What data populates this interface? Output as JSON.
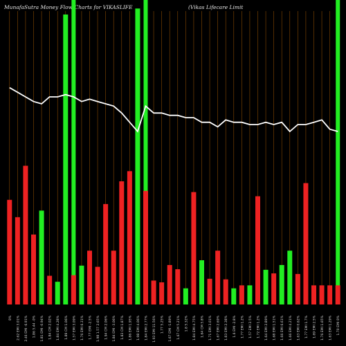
{
  "header": {
    "title_left": "MunafaSutra  Money Flow  Charts for VIKASLIFE",
    "title_right": "(Vikas Lifecare   Limit"
  },
  "chart_data": {
    "type": "bar",
    "title": "MunafaSutra Money Flow Charts for VIKASLIFE (Vikas Lifecare Limit",
    "colors": {
      "up": "#22ee22",
      "down": "#ee2222",
      "line": "#ffffff",
      "grid": "#8a4a00",
      "background": "#000000"
    },
    "categories": [
      "0%",
      "2.62 EMI 3.01%",
      "2.46 EMI -6.91%",
      "1.86 5.44 -0%",
      "1.81 EMI -0.94%",
      "1.84 CM 2.02%",
      "1.84 EMI 4.28%",
      "1.89 CM 1.06%",
      "1.57 EMI 3.09%",
      "1.76 EMI 6.31%",
      "1.77 EMI -2.5%",
      "1.98 1.57 2.65%",
      "1.94 CM 2.06%",
      "1.84 EMI -3.06%",
      "1.83 CM 1.87%",
      "1.86 EMI 1.95%",
      "1.98 EMI 4.06%",
      "1.84 EMI 2.77%",
      "1.93 EMI 11.56%",
      "1.77 5.25%",
      "1.67 EMI -1.89%",
      "1.67 CM 5.21%",
      "1.8 5.32%",
      "1.84 EMI 4.75%",
      "1.64 CM 5.8%",
      "1.71 EMI 3.01%",
      "1.67 EMI 2.69%",
      "1.83 EMI 2.38%",
      "1.6 EMI -2.8%",
      "1.77 EMI 1.2%",
      "1.57 EMI 2.5%",
      "1.72 EMI 1.2%",
      "1.64 EMI 2.89%",
      "1.68 EMI 1.51%",
      "1.66 EMI 6.61%",
      "1.66 EMI 4.21%",
      "1.63 EMI 0.62%",
      "1.77 EMI 1.7%",
      "1.69 EMI 2.5%",
      "1.76 EMI 1.65%",
      "1.63 EMI 1.29%",
      "1.70 EMI 0%"
    ],
    "values": [
      175,
      146,
      232,
      117,
      157,
      48,
      38,
      485,
      49,
      65,
      90,
      63,
      168,
      90,
      206,
      223,
      495,
      190,
      40,
      37,
      66,
      59,
      27,
      188,
      74,
      43,
      90,
      42,
      27,
      32,
      32,
      181,
      58,
      52,
      66,
      90,
      51,
      203,
      32,
      32,
      32,
      32
    ],
    "directions": [
      "down",
      "down",
      "down",
      "down",
      "up",
      "down",
      "up",
      "up",
      "down",
      "up",
      "down",
      "down",
      "down",
      "down",
      "down",
      "down",
      "up",
      "down",
      "down",
      "down",
      "down",
      "down",
      "up",
      "down",
      "up",
      "down",
      "down",
      "down",
      "up",
      "down",
      "up",
      "down",
      "up",
      "down",
      "up",
      "up",
      "down",
      "down",
      "down",
      "down",
      "down",
      "down"
    ],
    "highlight_indices": [
      8,
      17,
      41
    ],
    "price_line": [
      0.74,
      0.72,
      0.7,
      0.68,
      0.67,
      0.7,
      0.7,
      0.71,
      0.7,
      0.68,
      0.69,
      0.68,
      0.67,
      0.66,
      0.63,
      0.59,
      0.55,
      0.66,
      0.63,
      0.63,
      0.62,
      0.62,
      0.61,
      0.61,
      0.59,
      0.59,
      0.57,
      0.6,
      0.59,
      0.59,
      0.58,
      0.58,
      0.59,
      0.58,
      0.59,
      0.55,
      0.58,
      0.58,
      0.59,
      0.6,
      0.56,
      0.55
    ],
    "ylim": [
      0,
      500
    ],
    "grid": "vertical",
    "xlabel": "",
    "ylabel": ""
  }
}
